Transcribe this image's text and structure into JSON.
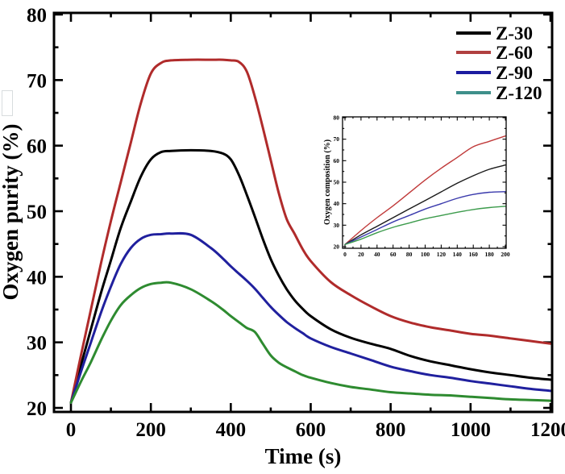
{
  "figure": {
    "background": "#ffffff",
    "frame_color": "#000000"
  },
  "chart_data": [
    {
      "id": "main",
      "type": "line",
      "title": "",
      "xlabel": "Time (s)",
      "ylabel": "Oxygen purity (%)",
      "xlim": [
        0,
        1200
      ],
      "ylim": [
        20,
        80
      ],
      "grid": false,
      "legend_position": "top-right-inside",
      "xticks": [
        0,
        200,
        400,
        600,
        800,
        1000,
        1200
      ],
      "xminor": [
        100,
        300,
        500,
        700,
        900,
        1100
      ],
      "yticks": [
        20,
        30,
        40,
        50,
        60,
        70,
        80
      ],
      "yminor": [
        25,
        35,
        45,
        55,
        65,
        75
      ],
      "legend": [
        {
          "label": "Z-30",
          "swatch_color": "#000000"
        },
        {
          "label": "Z-60",
          "swatch_color": "#b04040"
        },
        {
          "label": "Z-90",
          "swatch_color": "#1c1ca0"
        },
        {
          "label": "Z-120",
          "swatch_color": "#3e8f8a"
        }
      ],
      "series": [
        {
          "name": "Z-30",
          "color": "#000000",
          "x": [
            0,
            25,
            50,
            75,
            100,
            125,
            150,
            175,
            200,
            225,
            250,
            300,
            350,
            380,
            400,
            420,
            440,
            460,
            480,
            500,
            520,
            540,
            560,
            580,
            600,
            650,
            700,
            750,
            800,
            850,
            900,
            950,
            1000,
            1050,
            1100,
            1150,
            1200
          ],
          "y": [
            20.8,
            26.5,
            32,
            37.5,
            42.5,
            47.5,
            51.5,
            55.3,
            57.9,
            59,
            59.2,
            59.3,
            59.2,
            58.8,
            57.9,
            55.6,
            52.5,
            49.2,
            45.8,
            42.7,
            40.2,
            38.1,
            36.4,
            35.1,
            34,
            32,
            30.7,
            29.8,
            29,
            27.9,
            27.1,
            26.5,
            25.9,
            25.4,
            25,
            24.6,
            24.3
          ]
        },
        {
          "name": "Z-60",
          "color": "#b02b2b",
          "x": [
            0,
            25,
            50,
            75,
            100,
            125,
            150,
            175,
            200,
            225,
            250,
            300,
            350,
            380,
            400,
            420,
            440,
            460,
            480,
            500,
            520,
            540,
            560,
            580,
            600,
            650,
            700,
            750,
            800,
            850,
            900,
            950,
            1000,
            1050,
            1100,
            1150,
            1200
          ],
          "y": [
            20.8,
            28,
            35,
            42,
            48.5,
            54.5,
            60.5,
            66.5,
            71,
            72.6,
            73,
            73.1,
            73.1,
            73.1,
            73,
            72.8,
            71.3,
            67.5,
            62.8,
            57.8,
            52.8,
            48.8,
            46.5,
            44.2,
            42.4,
            39.2,
            37.2,
            35.5,
            34,
            33,
            32.3,
            31.8,
            31.3,
            31,
            30.6,
            30.2,
            29.8
          ]
        },
        {
          "name": "Z-90",
          "color": "#20209e",
          "x": [
            0,
            25,
            50,
            75,
            100,
            125,
            150,
            175,
            200,
            225,
            250,
            300,
            350,
            380,
            400,
            420,
            440,
            460,
            480,
            500,
            520,
            540,
            560,
            580,
            600,
            650,
            700,
            750,
            800,
            850,
            900,
            950,
            1000,
            1050,
            1100,
            1150,
            1200
          ],
          "y": [
            20.8,
            25.5,
            30,
            34.5,
            38.5,
            42,
            44.4,
            45.8,
            46.4,
            46.5,
            46.6,
            46.4,
            44.4,
            42.8,
            41.6,
            40.5,
            39.4,
            38.2,
            36.8,
            35.4,
            34.2,
            33.1,
            32.2,
            31.4,
            30.6,
            29.3,
            28.3,
            27.3,
            26.3,
            25.6,
            25,
            24.6,
            24.1,
            23.7,
            23.3,
            22.9,
            22.6
          ]
        },
        {
          "name": "Z-120",
          "color": "#2e8b30",
          "x": [
            0,
            25,
            50,
            75,
            100,
            125,
            150,
            175,
            200,
            225,
            250,
            300,
            350,
            380,
            400,
            420,
            440,
            460,
            480,
            500,
            520,
            540,
            560,
            580,
            600,
            650,
            700,
            750,
            800,
            850,
            900,
            950,
            1000,
            1050,
            1100,
            1150,
            1200
          ],
          "y": [
            20.8,
            24,
            27,
            30.3,
            33.3,
            35.7,
            37.2,
            38.3,
            38.9,
            39.1,
            39.1,
            38.1,
            36.3,
            35,
            34,
            33.1,
            32.2,
            31.6,
            29.8,
            28,
            26.9,
            26.2,
            25.6,
            25,
            24.6,
            23.8,
            23.2,
            22.8,
            22.4,
            22.2,
            22,
            21.9,
            21.7,
            21.5,
            21.3,
            21.2,
            21.1
          ]
        }
      ]
    },
    {
      "id": "inset",
      "type": "line",
      "title": "",
      "xlabel": "",
      "ylabel": "Oxygen composition (%)",
      "xlim": [
        0,
        200
      ],
      "ylim": [
        20,
        80
      ],
      "grid": false,
      "legend_position": "none",
      "xticks": [
        0,
        20,
        40,
        60,
        80,
        100,
        120,
        140,
        160,
        180,
        200
      ],
      "xminor": [
        10,
        30,
        50,
        70,
        90,
        110,
        130,
        150,
        170,
        190
      ],
      "yticks": [
        20,
        30,
        40,
        50,
        60,
        70,
        80
      ],
      "yminor": [
        25,
        35,
        45,
        55,
        65,
        75
      ],
      "series": [
        {
          "name": "Z-60",
          "color": "#c03a3a",
          "x": [
            0,
            20,
            40,
            60,
            80,
            100,
            120,
            140,
            160,
            180,
            200
          ],
          "y": [
            21,
            27.5,
            33.5,
            39,
            45,
            51,
            56.5,
            61.5,
            66.5,
            69,
            71.5
          ]
        },
        {
          "name": "Z-30",
          "color": "#1a1a1a",
          "x": [
            0,
            20,
            40,
            60,
            80,
            100,
            120,
            140,
            160,
            180,
            200
          ],
          "y": [
            21,
            25.5,
            29.5,
            33.5,
            37.5,
            41.5,
            45.5,
            49.5,
            53,
            56,
            58
          ]
        },
        {
          "name": "Z-90",
          "color": "#3a3aac",
          "x": [
            0,
            20,
            40,
            60,
            80,
            100,
            120,
            140,
            160,
            180,
            200
          ],
          "y": [
            21,
            24.5,
            28,
            31.5,
            34.5,
            37.5,
            40,
            42.5,
            44.3,
            45.3,
            45.6
          ]
        },
        {
          "name": "Z-120",
          "color": "#3c9b4c",
          "x": [
            0,
            20,
            40,
            60,
            80,
            100,
            120,
            140,
            160,
            180,
            200
          ],
          "y": [
            21,
            23.5,
            26.5,
            29,
            31,
            33,
            34.5,
            36,
            37.3,
            38.2,
            38.8
          ]
        }
      ]
    }
  ]
}
